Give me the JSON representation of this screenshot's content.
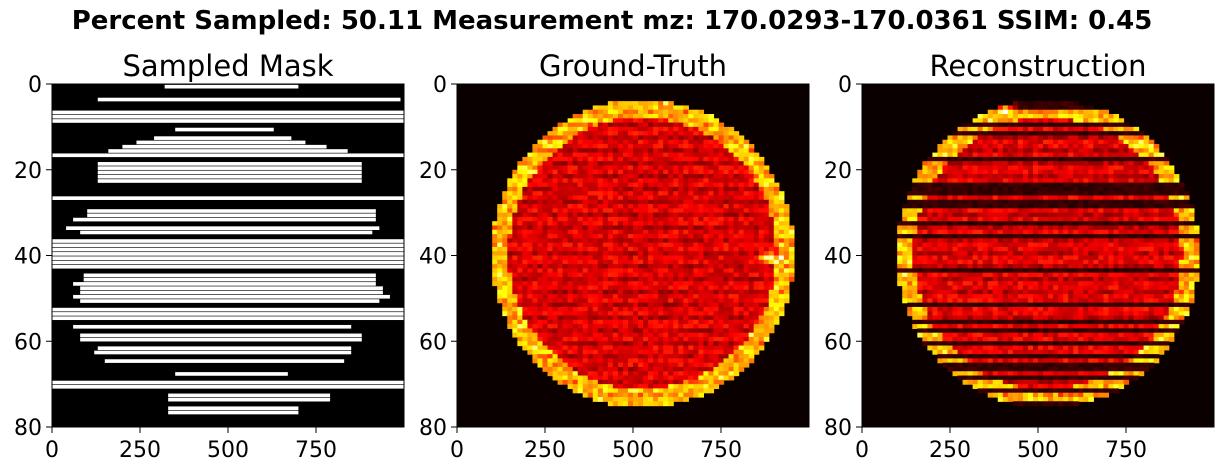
{
  "suptitle": "Percent Sampled: 50.11  Measurement mz: 170.0293-170.0361  SSIM: 0.45",
  "colors": {
    "mask_on": "#ffffff",
    "mask_off": "#000000",
    "heat_low": "#0b0000",
    "heat_mid": "#b01000",
    "heat_high": "#ffff60"
  },
  "chart_data": [
    {
      "type": "heatmap",
      "title": "Sampled Mask",
      "xlim": [
        0,
        1000
      ],
      "ylim": [
        80,
        0
      ],
      "xticks": [
        0,
        250,
        500,
        750
      ],
      "yticks": [
        0,
        20,
        40,
        60,
        80
      ],
      "colormap": "gray",
      "sampled_rows": [
        {
          "y": 0,
          "x": [
            320,
            700
          ]
        },
        {
          "y": 3,
          "x": [
            130,
            990
          ]
        },
        {
          "y": 6,
          "x": [
            0,
            1000
          ]
        },
        {
          "y": 7,
          "x": [
            0,
            1000
          ]
        },
        {
          "y": 8,
          "x": [
            0,
            1000
          ]
        },
        {
          "y": 10,
          "x": [
            350,
            630
          ]
        },
        {
          "y": 12,
          "x": [
            290,
            680
          ]
        },
        {
          "y": 13,
          "x": [
            240,
            720
          ]
        },
        {
          "y": 14,
          "x": [
            200,
            780
          ]
        },
        {
          "y": 15,
          "x": [
            160,
            840
          ]
        },
        {
          "y": 16,
          "x": [
            0,
            1000
          ]
        },
        {
          "y": 18,
          "x": [
            130,
            880
          ]
        },
        {
          "y": 19,
          "x": [
            130,
            880
          ]
        },
        {
          "y": 20,
          "x": [
            130,
            880
          ]
        },
        {
          "y": 21,
          "x": [
            130,
            880
          ]
        },
        {
          "y": 22,
          "x": [
            130,
            880
          ]
        },
        {
          "y": 26,
          "x": [
            0,
            1000
          ]
        },
        {
          "y": 29,
          "x": [
            100,
            920
          ]
        },
        {
          "y": 30,
          "x": [
            100,
            920
          ]
        },
        {
          "y": 31,
          "x": [
            60,
            920
          ]
        },
        {
          "y": 33,
          "x": [
            40,
            930
          ]
        },
        {
          "y": 34,
          "x": [
            80,
            910
          ]
        },
        {
          "y": 36,
          "x": [
            0,
            1000
          ]
        },
        {
          "y": 37,
          "x": [
            0,
            1000
          ]
        },
        {
          "y": 38,
          "x": [
            0,
            1000
          ]
        },
        {
          "y": 39,
          "x": [
            0,
            1000
          ]
        },
        {
          "y": 40,
          "x": [
            0,
            1000
          ]
        },
        {
          "y": 41,
          "x": [
            0,
            1000
          ]
        },
        {
          "y": 42,
          "x": [
            0,
            1000
          ]
        },
        {
          "y": 44,
          "x": [
            90,
            920
          ]
        },
        {
          "y": 45,
          "x": [
            90,
            920
          ]
        },
        {
          "y": 46,
          "x": [
            60,
            920
          ]
        },
        {
          "y": 47,
          "x": [
            80,
            940
          ]
        },
        {
          "y": 48,
          "x": [
            80,
            940
          ]
        },
        {
          "y": 49,
          "x": [
            60,
            960
          ]
        },
        {
          "y": 50,
          "x": [
            80,
            930
          ]
        },
        {
          "y": 52,
          "x": [
            0,
            1000
          ]
        },
        {
          "y": 53,
          "x": [
            0,
            1000
          ]
        },
        {
          "y": 54,
          "x": [
            0,
            1000
          ]
        },
        {
          "y": 56,
          "x": [
            60,
            850
          ]
        },
        {
          "y": 58,
          "x": [
            80,
            880
          ]
        },
        {
          "y": 59,
          "x": [
            80,
            880
          ]
        },
        {
          "y": 61,
          "x": [
            130,
            850
          ]
        },
        {
          "y": 62,
          "x": [
            120,
            850
          ]
        },
        {
          "y": 64,
          "x": [
            150,
            830
          ]
        },
        {
          "y": 67,
          "x": [
            350,
            670
          ]
        },
        {
          "y": 69,
          "x": [
            0,
            1000
          ]
        },
        {
          "y": 70,
          "x": [
            0,
            1000
          ]
        },
        {
          "y": 72,
          "x": [
            330,
            790
          ]
        },
        {
          "y": 73,
          "x": [
            330,
            790
          ]
        },
        {
          "y": 75,
          "x": [
            330,
            700
          ]
        },
        {
          "y": 76,
          "x": [
            330,
            700
          ]
        }
      ]
    },
    {
      "type": "heatmap",
      "title": "Ground-Truth",
      "xlim": [
        0,
        1000
      ],
      "ylim": [
        80,
        0
      ],
      "xticks": [
        0,
        250,
        500,
        750
      ],
      "yticks": [
        0,
        20,
        40,
        60,
        80
      ],
      "colormap": "hot",
      "sample": {
        "center_x": 520,
        "center_y": 39,
        "radius_x": 420,
        "radius_y": 35
      },
      "hotspots": [
        {
          "x": 390,
          "y": 3
        },
        {
          "x": 880,
          "y": 40
        }
      ]
    },
    {
      "type": "heatmap",
      "title": "Reconstruction",
      "xlim": [
        0,
        1000
      ],
      "ylim": [
        80,
        0
      ],
      "xticks": [
        0,
        250,
        500,
        750
      ],
      "yticks": [
        0,
        20,
        40,
        60,
        80
      ],
      "colormap": "hot",
      "sample": {
        "center_x": 520,
        "center_y": 39,
        "radius_x": 420,
        "radius_y": 35
      },
      "hotspots": [
        {
          "x": 400,
          "y": 5
        }
      ]
    }
  ]
}
